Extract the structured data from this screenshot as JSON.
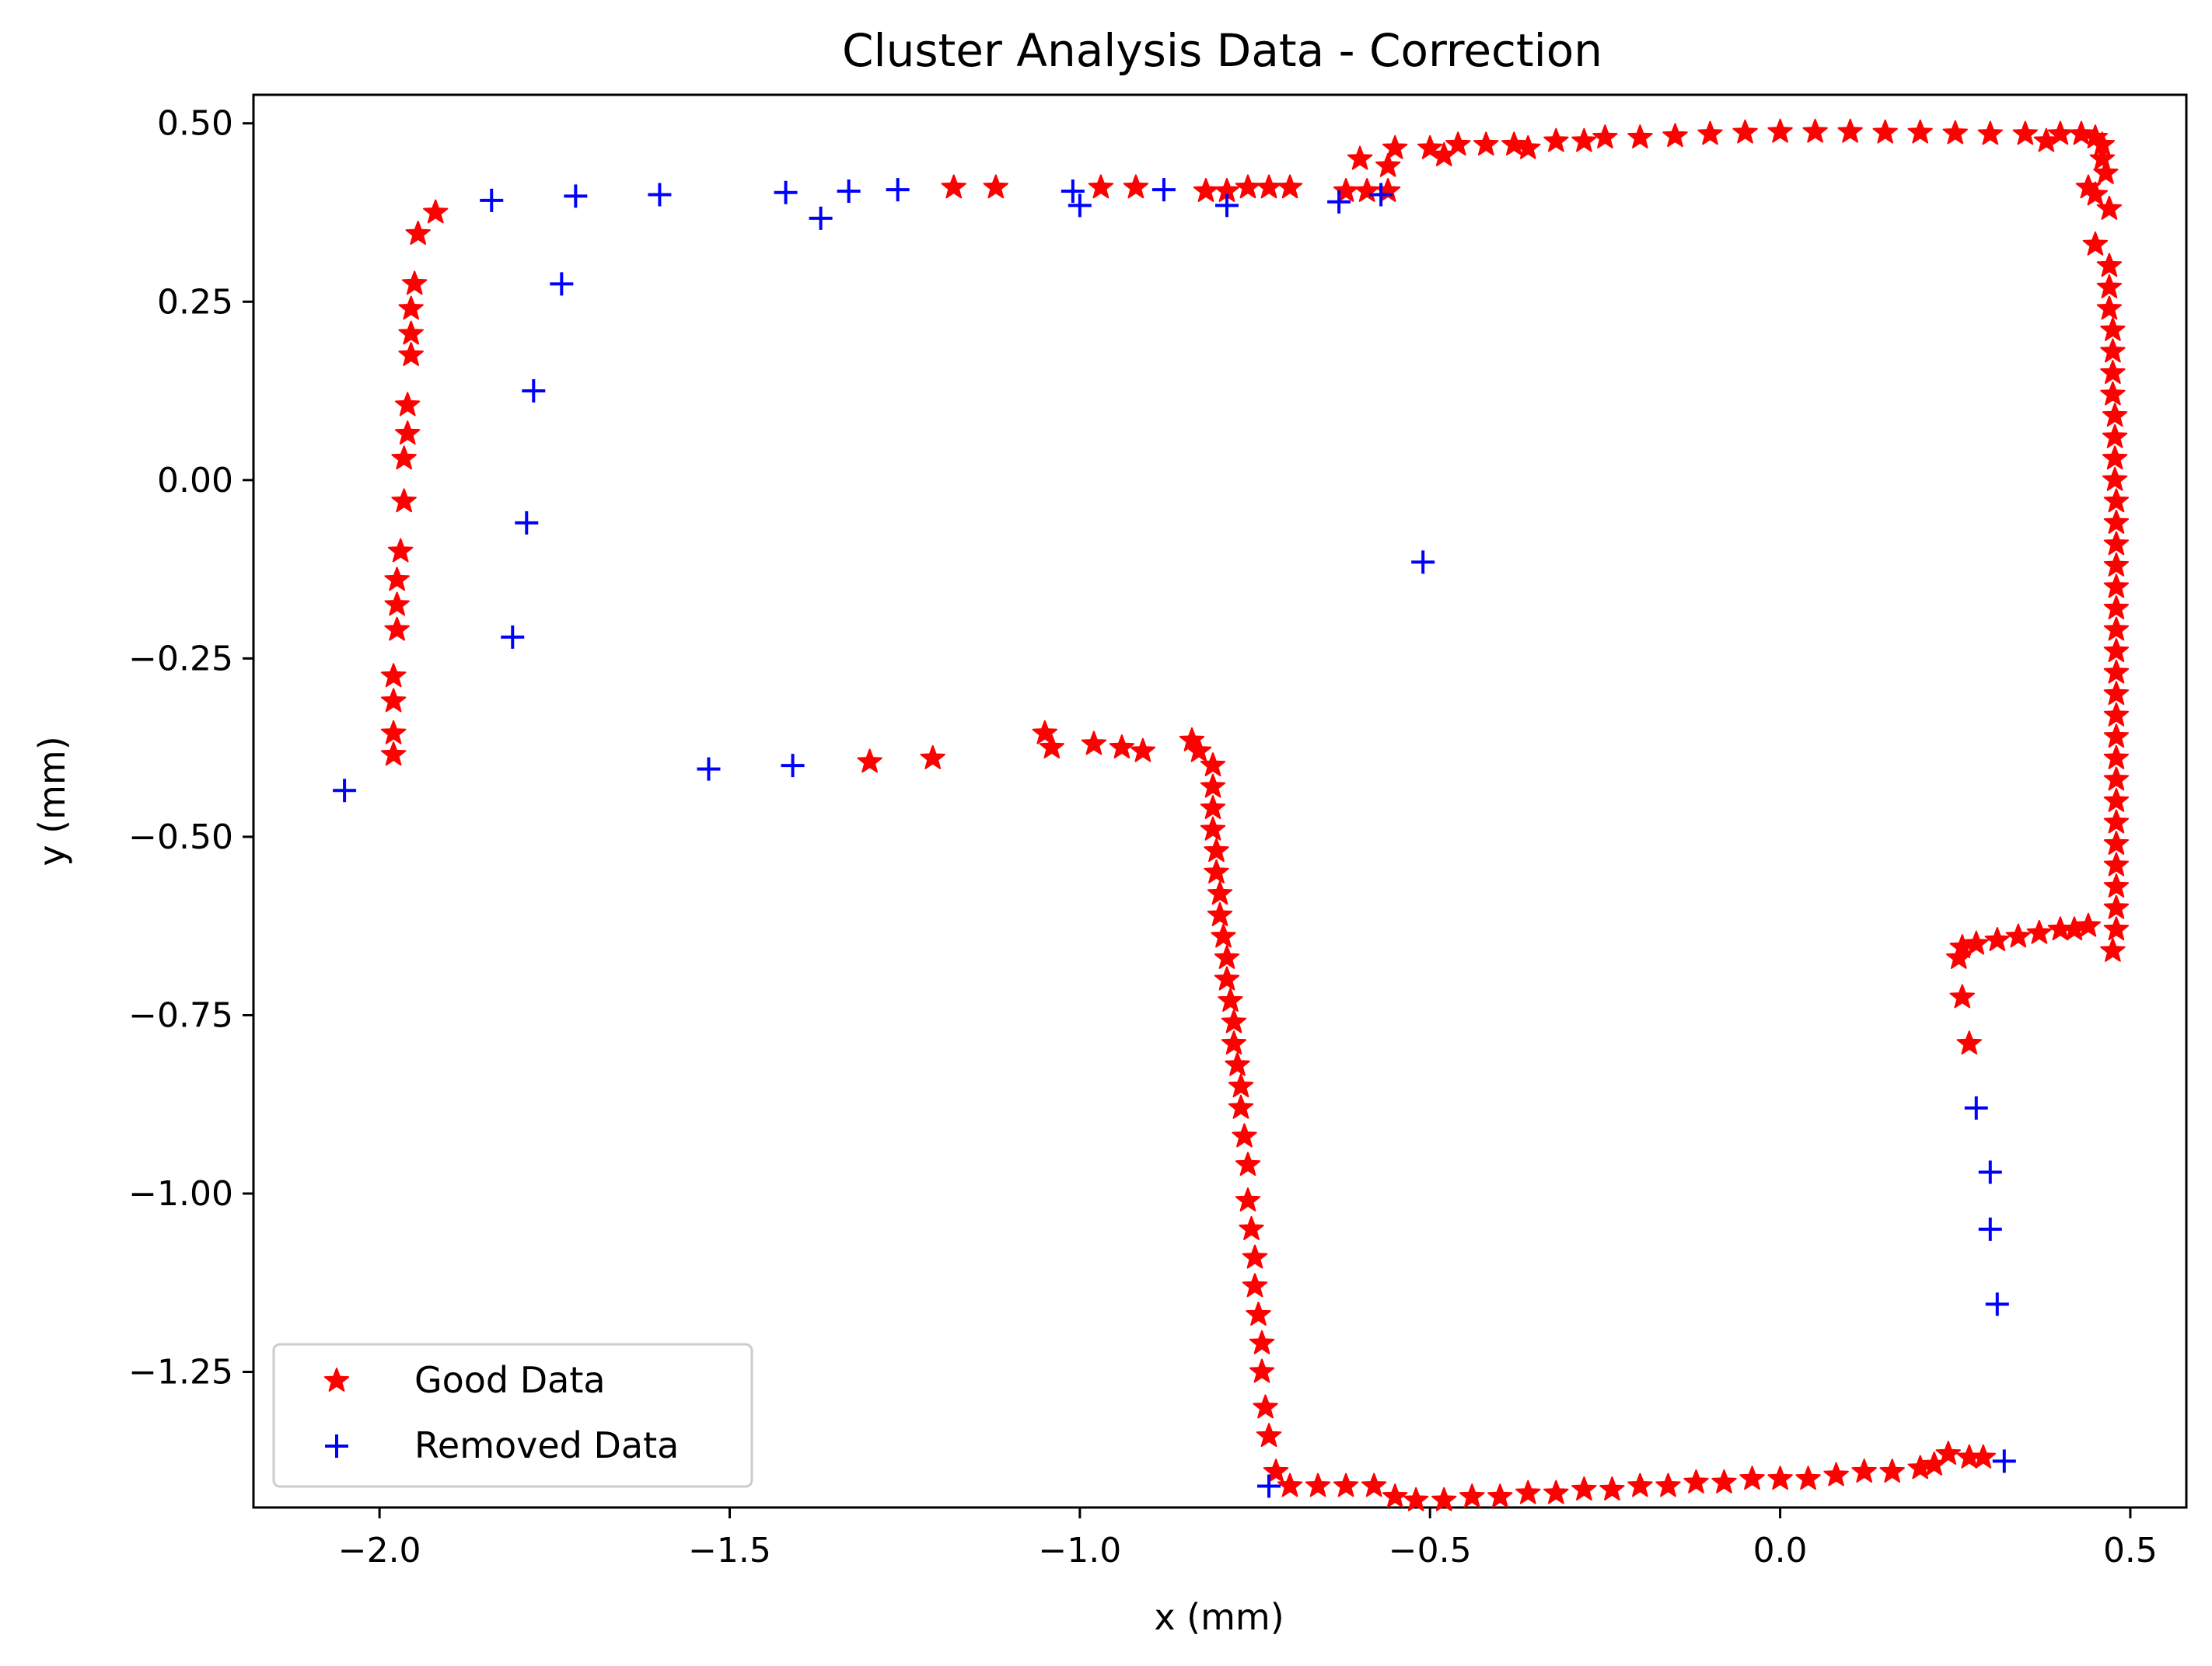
{
  "chart_data": {
    "type": "scatter",
    "title": "Cluster Analysis Data - Correction",
    "xlabel": "x (mm)",
    "ylabel": "y (mm)",
    "xlim": [
      -2.18,
      0.58
    ],
    "ylim": [
      -1.44,
      0.54
    ],
    "xticks": [
      -2.0,
      -1.5,
      -1.0,
      -0.5,
      0.0,
      0.5
    ],
    "xtick_labels": [
      "−2.0",
      "−1.5",
      "−1.0",
      "−0.5",
      "0.0",
      "0.5"
    ],
    "yticks": [
      0.5,
      0.25,
      0.0,
      -0.25,
      -0.5,
      -0.75,
      -1.0,
      -1.25
    ],
    "ytick_labels": [
      "0.50",
      "0.25",
      "0.00",
      "−0.25",
      "−0.50",
      "−0.75",
      "−1.00",
      "−1.25"
    ],
    "grid": false,
    "legend_position": "lower-left",
    "series": [
      {
        "name": "Good Data",
        "marker": "star",
        "color": "#ff0000",
        "points": [
          [
            -1.98,
            -0.385
          ],
          [
            -1.98,
            -0.355
          ],
          [
            -1.98,
            -0.31
          ],
          [
            -1.98,
            -0.275
          ],
          [
            -1.975,
            -0.21
          ],
          [
            -1.975,
            -0.175
          ],
          [
            -1.975,
            -0.14
          ],
          [
            -1.97,
            -0.1
          ],
          [
            -1.965,
            -0.03
          ],
          [
            -1.965,
            0.03
          ],
          [
            -1.96,
            0.065
          ],
          [
            -1.96,
            0.105
          ],
          [
            -1.955,
            0.175
          ],
          [
            -1.955,
            0.205
          ],
          [
            -1.955,
            0.24
          ],
          [
            -1.95,
            0.275
          ],
          [
            -1.945,
            0.345
          ],
          [
            -1.92,
            0.375
          ],
          [
            -1.18,
            0.41
          ],
          [
            -1.12,
            0.41
          ],
          [
            -0.97,
            0.41
          ],
          [
            -0.92,
            0.41
          ],
          [
            -0.82,
            0.405
          ],
          [
            -0.79,
            0.405
          ],
          [
            -0.76,
            0.41
          ],
          [
            -0.73,
            0.41
          ],
          [
            -0.7,
            0.41
          ],
          [
            -0.62,
            0.405
          ],
          [
            -0.59,
            0.405
          ],
          [
            -0.56,
            0.405
          ],
          [
            -0.6,
            0.45
          ],
          [
            -0.56,
            0.44
          ],
          [
            -0.55,
            0.465
          ],
          [
            -0.5,
            0.465
          ],
          [
            -0.48,
            0.455
          ],
          [
            -0.46,
            0.47
          ],
          [
            -0.42,
            0.47
          ],
          [
            -0.38,
            0.47
          ],
          [
            -0.36,
            0.465
          ],
          [
            -0.32,
            0.475
          ],
          [
            -0.28,
            0.475
          ],
          [
            -0.25,
            0.48
          ],
          [
            -0.2,
            0.48
          ],
          [
            -0.15,
            0.482
          ],
          [
            -0.1,
            0.485
          ],
          [
            -0.05,
            0.487
          ],
          [
            0.0,
            0.488
          ],
          [
            0.05,
            0.488
          ],
          [
            0.1,
            0.488
          ],
          [
            0.15,
            0.487
          ],
          [
            0.2,
            0.487
          ],
          [
            0.25,
            0.486
          ],
          [
            0.3,
            0.485
          ],
          [
            0.35,
            0.485
          ],
          [
            0.38,
            0.475
          ],
          [
            0.4,
            0.485
          ],
          [
            0.43,
            0.485
          ],
          [
            0.45,
            0.48
          ],
          [
            0.46,
            0.47
          ],
          [
            0.46,
            0.45
          ],
          [
            0.465,
            0.43
          ],
          [
            0.44,
            0.41
          ],
          [
            0.45,
            0.4
          ],
          [
            0.47,
            0.38
          ],
          [
            0.45,
            0.33
          ],
          [
            0.47,
            0.3
          ],
          [
            0.47,
            0.27
          ],
          [
            0.47,
            0.24
          ],
          [
            0.475,
            0.21
          ],
          [
            0.475,
            0.18
          ],
          [
            0.475,
            0.15
          ],
          [
            0.475,
            0.12
          ],
          [
            0.478,
            0.09
          ],
          [
            0.478,
            0.06
          ],
          [
            0.478,
            0.03
          ],
          [
            0.478,
            0.0
          ],
          [
            0.48,
            -0.03
          ],
          [
            0.48,
            -0.06
          ],
          [
            0.48,
            -0.09
          ],
          [
            0.48,
            -0.12
          ],
          [
            0.48,
            -0.15
          ],
          [
            0.48,
            -0.18
          ],
          [
            0.48,
            -0.21
          ],
          [
            0.48,
            -0.24
          ],
          [
            0.48,
            -0.27
          ],
          [
            0.48,
            -0.3
          ],
          [
            0.48,
            -0.33
          ],
          [
            0.48,
            -0.36
          ],
          [
            0.48,
            -0.39
          ],
          [
            0.48,
            -0.42
          ],
          [
            0.48,
            -0.45
          ],
          [
            0.48,
            -0.48
          ],
          [
            0.48,
            -0.51
          ],
          [
            0.48,
            -0.54
          ],
          [
            0.48,
            -0.57
          ],
          [
            0.48,
            -0.6
          ],
          [
            0.48,
            -0.63
          ],
          [
            0.475,
            -0.66
          ],
          [
            0.44,
            -0.625
          ],
          [
            0.42,
            -0.63
          ],
          [
            0.4,
            -0.63
          ],
          [
            0.37,
            -0.635
          ],
          [
            0.34,
            -0.64
          ],
          [
            0.31,
            -0.645
          ],
          [
            0.28,
            -0.65
          ],
          [
            0.26,
            -0.655
          ],
          [
            0.255,
            -0.67
          ],
          [
            0.26,
            -0.725
          ],
          [
            0.27,
            -0.79
          ],
          [
            -1.05,
            -0.355
          ],
          [
            -1.04,
            -0.375
          ],
          [
            -0.98,
            -0.37
          ],
          [
            -0.94,
            -0.375
          ],
          [
            -0.91,
            -0.38
          ],
          [
            -1.3,
            -0.395
          ],
          [
            -1.21,
            -0.39
          ],
          [
            -0.84,
            -0.365
          ],
          [
            -0.83,
            -0.38
          ],
          [
            -0.81,
            -0.4
          ],
          [
            -0.81,
            -0.43
          ],
          [
            -0.81,
            -0.46
          ],
          [
            -0.81,
            -0.49
          ],
          [
            -0.805,
            -0.52
          ],
          [
            -0.805,
            -0.55
          ],
          [
            -0.8,
            -0.58
          ],
          [
            -0.8,
            -0.61
          ],
          [
            -0.795,
            -0.64
          ],
          [
            -0.79,
            -0.67
          ],
          [
            -0.79,
            -0.7
          ],
          [
            -0.785,
            -0.73
          ],
          [
            -0.78,
            -0.76
          ],
          [
            -0.78,
            -0.79
          ],
          [
            -0.775,
            -0.82
          ],
          [
            -0.77,
            -0.85
          ],
          [
            -0.77,
            -0.88
          ],
          [
            -0.765,
            -0.92
          ],
          [
            -0.76,
            -0.96
          ],
          [
            -0.76,
            -1.01
          ],
          [
            -0.755,
            -1.05
          ],
          [
            -0.75,
            -1.09
          ],
          [
            -0.75,
            -1.13
          ],
          [
            -0.745,
            -1.17
          ],
          [
            -0.74,
            -1.21
          ],
          [
            -0.74,
            -1.25
          ],
          [
            -0.735,
            -1.3
          ],
          [
            -0.73,
            -1.34
          ],
          [
            -0.72,
            -1.39
          ],
          [
            -0.7,
            -1.41
          ],
          [
            -0.66,
            -1.41
          ],
          [
            -0.62,
            -1.41
          ],
          [
            -0.58,
            -1.41
          ],
          [
            -0.55,
            -1.425
          ],
          [
            -0.52,
            -1.43
          ],
          [
            -0.48,
            -1.43
          ],
          [
            -0.44,
            -1.425
          ],
          [
            -0.4,
            -1.425
          ],
          [
            -0.36,
            -1.42
          ],
          [
            -0.32,
            -1.42
          ],
          [
            -0.28,
            -1.415
          ],
          [
            -0.24,
            -1.415
          ],
          [
            -0.2,
            -1.41
          ],
          [
            -0.16,
            -1.41
          ],
          [
            -0.12,
            -1.405
          ],
          [
            -0.08,
            -1.405
          ],
          [
            -0.04,
            -1.4
          ],
          [
            0.0,
            -1.4
          ],
          [
            0.04,
            -1.4
          ],
          [
            0.08,
            -1.395
          ],
          [
            0.12,
            -1.39
          ],
          [
            0.16,
            -1.39
          ],
          [
            0.2,
            -1.385
          ],
          [
            0.22,
            -1.38
          ],
          [
            0.24,
            -1.365
          ],
          [
            0.27,
            -1.37
          ],
          [
            0.29,
            -1.37
          ]
        ]
      },
      {
        "name": "Removed Data",
        "marker": "plus",
        "color": "#0000ff",
        "points": [
          [
            -2.05,
            -0.435
          ],
          [
            -1.84,
            0.392
          ],
          [
            -1.72,
            0.398
          ],
          [
            -1.6,
            0.4
          ],
          [
            -1.42,
            0.403
          ],
          [
            -1.33,
            0.405
          ],
          [
            -1.37,
            0.367
          ],
          [
            -1.26,
            0.407
          ],
          [
            -1.01,
            0.405
          ],
          [
            -1.0,
            0.385
          ],
          [
            -0.88,
            0.407
          ],
          [
            -0.79,
            0.385
          ],
          [
            -0.63,
            0.39
          ],
          [
            -0.57,
            0.4
          ],
          [
            -1.74,
            0.275
          ],
          [
            -1.78,
            0.125
          ],
          [
            -1.79,
            -0.06
          ],
          [
            -1.81,
            -0.22
          ],
          [
            -1.53,
            -0.405
          ],
          [
            -1.41,
            -0.4
          ],
          [
            -0.51,
            -0.115
          ],
          [
            -0.73,
            -1.41
          ],
          [
            0.28,
            -0.88
          ],
          [
            0.3,
            -0.97
          ],
          [
            0.3,
            -1.05
          ],
          [
            0.31,
            -1.155
          ],
          [
            0.32,
            -1.375
          ]
        ]
      }
    ]
  }
}
